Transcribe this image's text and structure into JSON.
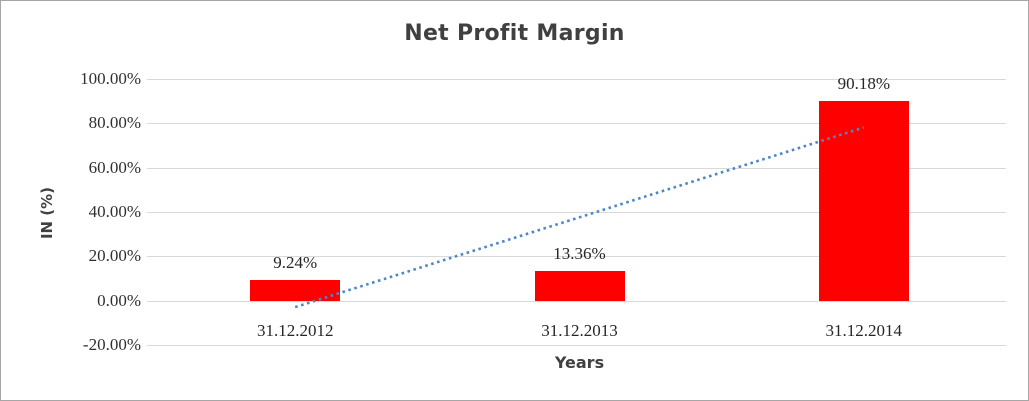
{
  "window": {
    "background_color": "#ffffff",
    "border_color": "#a6a6a6"
  },
  "chart_data": {
    "type": "bar",
    "title": "Net Profit Margin",
    "xlabel": "Years",
    "ylabel": "IN (%)",
    "categories": [
      "31.12.2012",
      "31.12.2013",
      "31.12.2014"
    ],
    "series": [
      {
        "name": "Net Profit Margin",
        "color": "#ff0000",
        "values": [
          9.24,
          13.36,
          90.18
        ]
      }
    ],
    "data_labels": [
      "9.24%",
      "13.36%",
      "90.18%"
    ],
    "ylim": [
      -20,
      100
    ],
    "ytick_step": 20,
    "ytick_labels": [
      "100.00%",
      "80.00%",
      "60.00%",
      "40.00%",
      "20.00%",
      "0.00%",
      "-20.00%"
    ],
    "grid": true,
    "gridline_color": "#d9d9d9",
    "legend_position": "none",
    "trendline": {
      "type": "linear",
      "style": "dotted",
      "color": "#4e86c8",
      "start_value": -2.9,
      "end_value": 78.1
    }
  }
}
